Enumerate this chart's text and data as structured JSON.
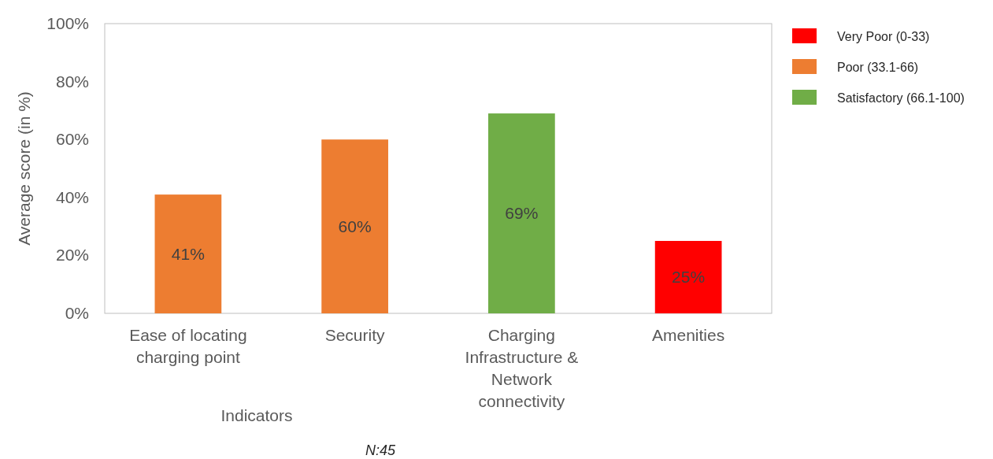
{
  "chart_data": {
    "type": "bar",
    "stacked": true,
    "ylabel": "Average score (in %)",
    "xlabel": "Indicators",
    "categories": [
      "Ease of locating charging point",
      "Security",
      "Charging Infrastructure & Network connectivity",
      "Amenities"
    ],
    "series": [
      {
        "name": "Very Poor (0-33)",
        "color": "#ff0000",
        "values": [
          null,
          null,
          null,
          25
        ],
        "value_labels": [
          null,
          null,
          null,
          "25%"
        ]
      },
      {
        "name": "Poor (33.1-66)",
        "color": "#ed7d31",
        "values": [
          41,
          60,
          null,
          null
        ],
        "value_labels": [
          "41%",
          "60%",
          null,
          null
        ]
      },
      {
        "name": "Satisfactory (66.1-100)",
        "color": "#70ad47",
        "values": [
          null,
          null,
          69,
          null
        ],
        "value_labels": [
          null,
          null,
          "69%",
          null
        ]
      }
    ],
    "ylim": [
      0,
      100
    ],
    "yticks": [
      {
        "value": 0,
        "label": "0%"
      },
      {
        "value": 20,
        "label": "20%"
      },
      {
        "value": 40,
        "label": "40%"
      },
      {
        "value": 60,
        "label": "60%"
      },
      {
        "value": 80,
        "label": "80%"
      },
      {
        "value": 100,
        "label": "100%"
      }
    ],
    "grid": false,
    "legend": "top right",
    "annotations": [
      "N:45"
    ]
  }
}
